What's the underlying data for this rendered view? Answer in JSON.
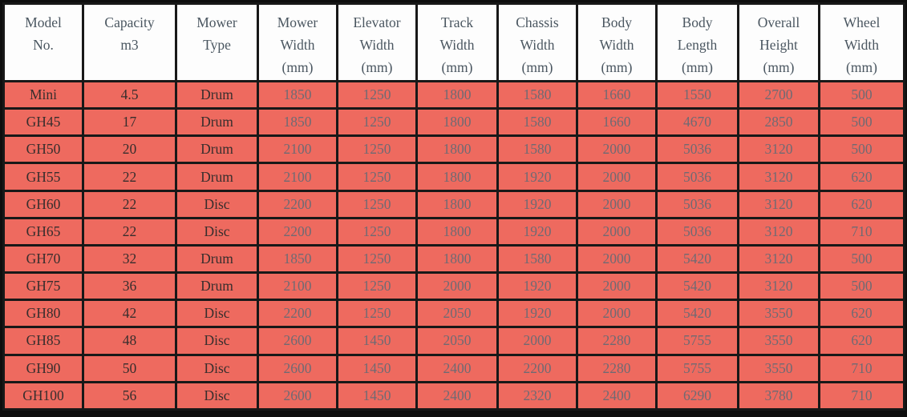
{
  "colors": {
    "frame": "#0e0e0e",
    "grid": "#181818",
    "header_bg": "#fdfdfd",
    "header_text": "#4a5660",
    "row_bg": "#ee6a5f",
    "label_text": "#372e2d",
    "value_text": "#6f6a73"
  },
  "table": {
    "columns": [
      {
        "id": "model-no",
        "lines": [
          "Model",
          "No."
        ]
      },
      {
        "id": "capacity",
        "lines": [
          "Capacity",
          "m3"
        ]
      },
      {
        "id": "mower-type",
        "lines": [
          "Mower",
          "Type"
        ]
      },
      {
        "id": "mower-width",
        "lines": [
          "Mower",
          "Width",
          "(mm)"
        ]
      },
      {
        "id": "elevator-width",
        "lines": [
          "Elevator",
          "Width",
          "(mm)"
        ]
      },
      {
        "id": "track-width",
        "lines": [
          "Track",
          "Width",
          "(mm)"
        ]
      },
      {
        "id": "chassis-width",
        "lines": [
          "Chassis",
          "Width",
          "(mm)"
        ]
      },
      {
        "id": "body-width",
        "lines": [
          "Body",
          "Width",
          "(mm)"
        ]
      },
      {
        "id": "body-length",
        "lines": [
          "Body",
          "Length",
          "(mm)"
        ]
      },
      {
        "id": "overall-height",
        "lines": [
          "Overall",
          "Height",
          "(mm)"
        ]
      },
      {
        "id": "wheel-width",
        "lines": [
          "Wheel",
          "Width",
          "(mm)"
        ]
      }
    ],
    "rows": [
      [
        "Mini",
        "4.5",
        "Drum",
        "1850",
        "1250",
        "1800",
        "1580",
        "1660",
        "1550",
        "2700",
        "500"
      ],
      [
        "GH45",
        "17",
        "Drum",
        "1850",
        "1250",
        "1800",
        "1580",
        "1660",
        "4670",
        "2850",
        "500"
      ],
      [
        "GH50",
        "20",
        "Drum",
        "2100",
        "1250",
        "1800",
        "1580",
        "2000",
        "5036",
        "3120",
        "500"
      ],
      [
        "GH55",
        "22",
        "Drum",
        "2100",
        "1250",
        "1800",
        "1920",
        "2000",
        "5036",
        "3120",
        "620"
      ],
      [
        "GH60",
        "22",
        "Disc",
        "2200",
        "1250",
        "1800",
        "1920",
        "2000",
        "5036",
        "3120",
        "620"
      ],
      [
        "GH65",
        "22",
        "Disc",
        "2200",
        "1250",
        "1800",
        "1920",
        "2000",
        "5036",
        "3120",
        "710"
      ],
      [
        "GH70",
        "32",
        "Drum",
        "1850",
        "1250",
        "1800",
        "1580",
        "2000",
        "5420",
        "3120",
        "500"
      ],
      [
        "GH75",
        "36",
        "Drum",
        "2100",
        "1250",
        "2000",
        "1920",
        "2000",
        "5420",
        "3120",
        "500"
      ],
      [
        "GH80",
        "42",
        "Disc",
        "2200",
        "1250",
        "2050",
        "1920",
        "2000",
        "5420",
        "3550",
        "620"
      ],
      [
        "GH85",
        "48",
        "Disc",
        "2600",
        "1450",
        "2050",
        "2000",
        "2280",
        "5755",
        "3550",
        "620"
      ],
      [
        "GH90",
        "50",
        "Disc",
        "2600",
        "1450",
        "2400",
        "2200",
        "2280",
        "5755",
        "3550",
        "710"
      ],
      [
        "GH100",
        "56",
        "Disc",
        "2600",
        "1450",
        "2400",
        "2320",
        "2400",
        "6290",
        "3780",
        "710"
      ]
    ]
  }
}
